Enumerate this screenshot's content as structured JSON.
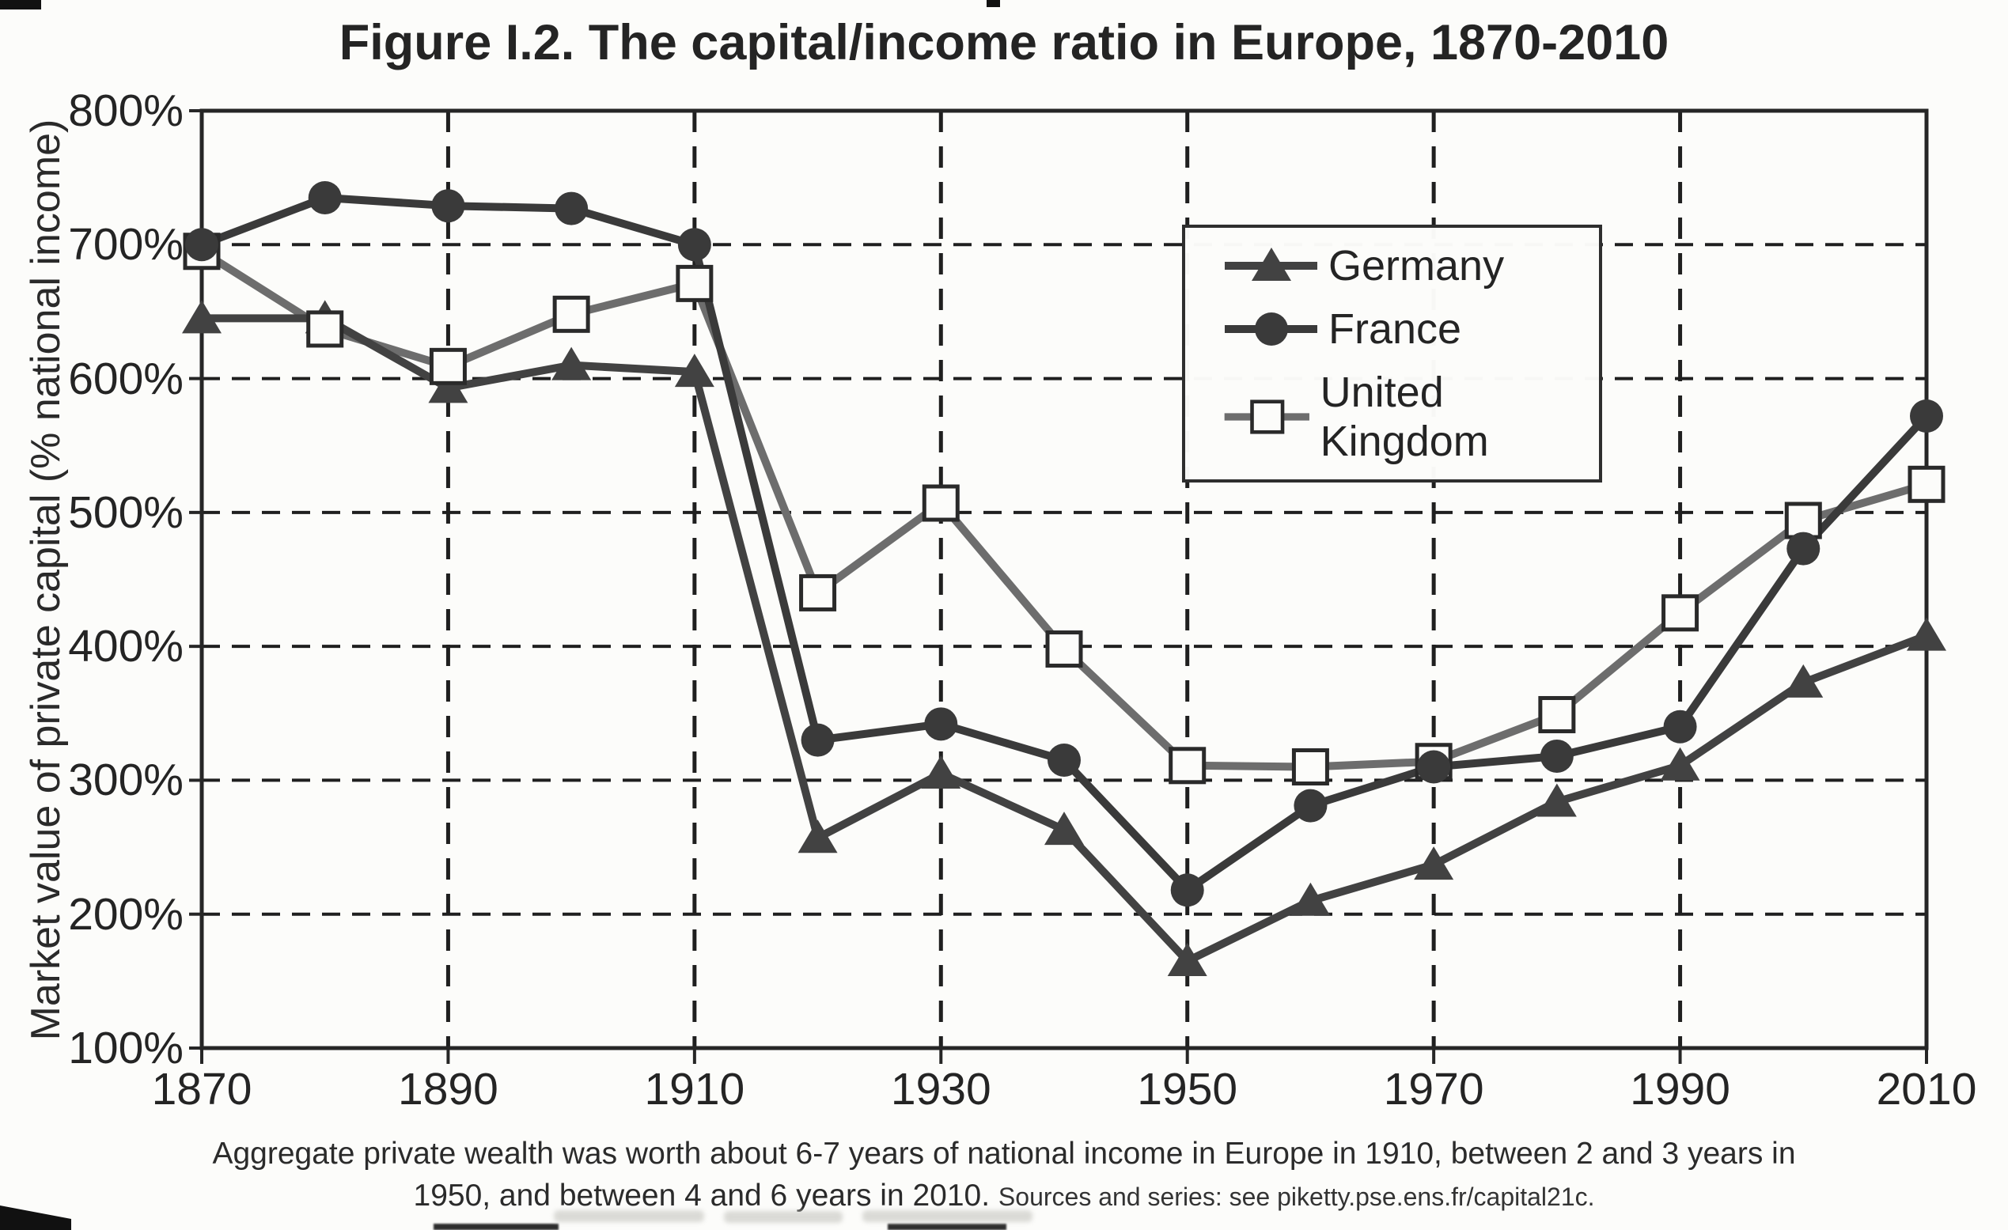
{
  "title": "Figure I.2. The capital/income ratio in Europe, 1870-2010",
  "y_axis_label": "Market value of private capital (% national income)",
  "caption": {
    "main": "Aggregate private wealth was worth about 6-7 years of national income in Europe in 1910, between 2 and 3 years in 1950, and between 4 and 6 years in 2010.",
    "sources": "Sources and series: see piketty.pse.ens.fr/capital21c."
  },
  "chart_data": {
    "type": "line",
    "title": "Figure I.2. The capital/income ratio in Europe, 1870-2010",
    "xlabel": "",
    "ylabel": "Market value of private capital (% national income)",
    "x": [
      1870,
      1880,
      1890,
      1900,
      1910,
      1920,
      1930,
      1940,
      1950,
      1960,
      1970,
      1980,
      1990,
      2000,
      2010
    ],
    "x_tick_labels": [
      "1870",
      "1890",
      "1910",
      "1930",
      "1950",
      "1970",
      "1990",
      "2010"
    ],
    "y_ticks": [
      100,
      200,
      300,
      400,
      500,
      600,
      700,
      800
    ],
    "y_tick_suffix": "%",
    "ylim": [
      100,
      800
    ],
    "xlim": [
      1870,
      2010
    ],
    "grid": "dashed horizontal lines at 200%-700%, dashed vertical lines every 20 years (1890-1990)",
    "grid_vertical_years": [
      1890,
      1910,
      1930,
      1950,
      1970,
      1990
    ],
    "legend_position": "upper right inside plot",
    "series": [
      {
        "name": "Germany",
        "marker": "triangle",
        "color": "#424242",
        "values": [
          645,
          645,
          593,
          610,
          605,
          257,
          305,
          263,
          165,
          210,
          237,
          284,
          311,
          373,
          408
        ]
      },
      {
        "name": "France",
        "marker": "circle",
        "color": "#3a3a3a",
        "values": [
          700,
          735,
          729,
          727,
          700,
          330,
          342,
          315,
          218,
          281,
          310,
          318,
          340,
          473,
          572
        ]
      },
      {
        "name": "United Kingdom",
        "marker": "square-open",
        "color": "#6d6d6d",
        "values": [
          695,
          637,
          609,
          648,
          671,
          440,
          507,
          398,
          311,
          310,
          314,
          349,
          425,
          494,
          521
        ]
      }
    ]
  }
}
